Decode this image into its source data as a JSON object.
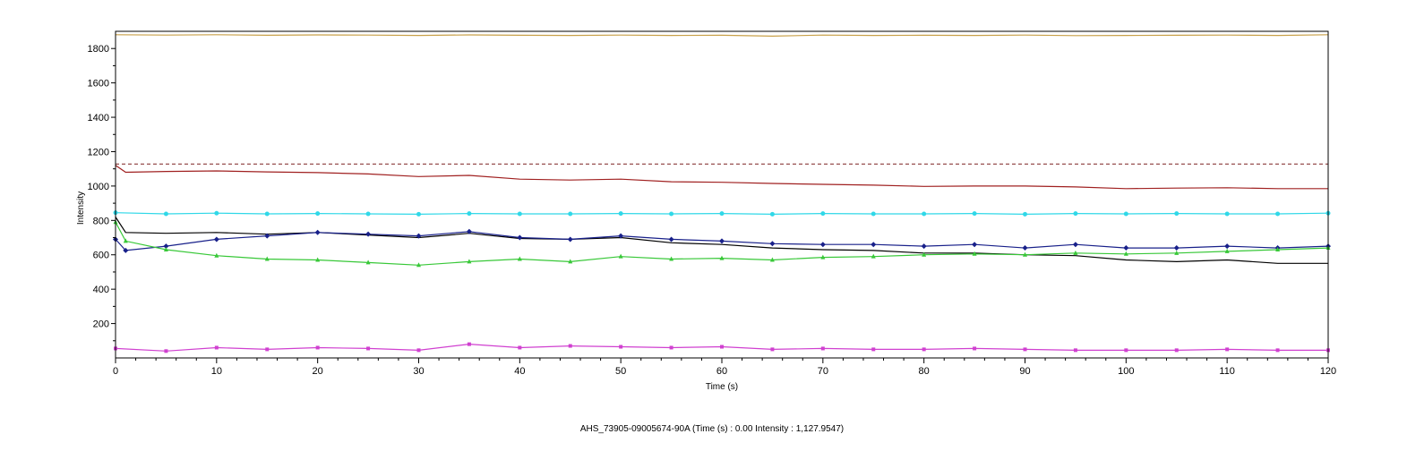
{
  "status_text": "AHS_73905-09005674-90A (Time (s) : 0.00  Intensity : 1,127.9547)",
  "chart_data": {
    "type": "line",
    "xlabel": "Time (s)",
    "ylabel": "Intensity",
    "xlim": [
      0,
      120
    ],
    "ylim": [
      0,
      1900
    ],
    "xticks": [
      0,
      10,
      20,
      30,
      40,
      50,
      60,
      70,
      80,
      90,
      100,
      110,
      120
    ],
    "yticks": [
      200,
      400,
      600,
      800,
      1000,
      1200,
      1400,
      1600,
      1800
    ],
    "grid": false,
    "legend": "none",
    "cursor": {
      "x": 0,
      "y": 1127.9547
    },
    "reference_lines": [
      {
        "y": 1127.95,
        "color": "#8b3a3a",
        "style": "dashed"
      }
    ],
    "series": [
      {
        "color": "#c8a048",
        "marker": "none",
        "x": [
          0,
          5,
          10,
          15,
          20,
          25,
          30,
          35,
          40,
          45,
          50,
          55,
          60,
          65,
          70,
          75,
          80,
          85,
          90,
          95,
          100,
          105,
          110,
          115,
          120
        ],
        "y": [
          1880,
          1878,
          1880,
          1877,
          1879,
          1878,
          1876,
          1879,
          1877,
          1876,
          1878,
          1876,
          1877,
          1872,
          1878,
          1876,
          1877,
          1876,
          1878,
          1875,
          1876,
          1877,
          1878,
          1876,
          1880
        ]
      },
      {
        "color": "#a02020",
        "marker": "none",
        "x": [
          0,
          1,
          5,
          10,
          15,
          20,
          25,
          30,
          35,
          40,
          45,
          50,
          55,
          60,
          65,
          70,
          75,
          80,
          85,
          90,
          95,
          100,
          105,
          110,
          115,
          120
        ],
        "y": [
          1120,
          1080,
          1085,
          1088,
          1082,
          1078,
          1070,
          1055,
          1062,
          1040,
          1035,
          1040,
          1025,
          1022,
          1015,
          1010,
          1005,
          998,
          1000,
          1000,
          995,
          985,
          988,
          990,
          985,
          985
        ]
      },
      {
        "color": "#30d8e8",
        "marker": "star",
        "x": [
          0,
          5,
          10,
          15,
          20,
          25,
          30,
          35,
          40,
          45,
          50,
          55,
          60,
          65,
          70,
          75,
          80,
          85,
          90,
          95,
          100,
          105,
          110,
          115,
          120
        ],
        "y": [
          845,
          838,
          842,
          838,
          840,
          838,
          836,
          840,
          838,
          838,
          840,
          838,
          840,
          836,
          840,
          838,
          838,
          840,
          836,
          840,
          838,
          840,
          838,
          838,
          842
        ]
      },
      {
        "color": "#000000",
        "marker": "none",
        "x": [
          0,
          1,
          5,
          10,
          15,
          20,
          25,
          30,
          35,
          40,
          45,
          50,
          55,
          60,
          65,
          70,
          75,
          80,
          85,
          90,
          95,
          100,
          105,
          110,
          115,
          120
        ],
        "y": [
          820,
          730,
          725,
          730,
          720,
          730,
          715,
          700,
          725,
          695,
          690,
          700,
          670,
          660,
          640,
          630,
          625,
          610,
          610,
          600,
          595,
          570,
          560,
          570,
          550,
          550
        ]
      },
      {
        "color": "#18208a",
        "marker": "diamond",
        "x": [
          0,
          1,
          5,
          10,
          15,
          20,
          25,
          30,
          35,
          40,
          45,
          50,
          55,
          60,
          65,
          70,
          75,
          80,
          85,
          90,
          95,
          100,
          105,
          110,
          115,
          120
        ],
        "y": [
          690,
          625,
          650,
          690,
          710,
          730,
          720,
          710,
          735,
          700,
          690,
          710,
          690,
          680,
          665,
          660,
          660,
          650,
          660,
          640,
          660,
          640,
          640,
          650,
          640,
          650
        ]
      },
      {
        "color": "#38c838",
        "marker": "triangle",
        "x": [
          0,
          1,
          5,
          10,
          15,
          20,
          25,
          30,
          35,
          40,
          45,
          50,
          55,
          60,
          65,
          70,
          75,
          80,
          85,
          90,
          95,
          100,
          105,
          110,
          115,
          120
        ],
        "y": [
          790,
          680,
          630,
          595,
          575,
          570,
          555,
          540,
          560,
          575,
          560,
          590,
          575,
          580,
          570,
          585,
          590,
          600,
          605,
          600,
          610,
          605,
          610,
          620,
          630,
          640
        ]
      },
      {
        "color": "#d040d0",
        "marker": "square",
        "x": [
          0,
          5,
          10,
          15,
          20,
          25,
          30,
          35,
          40,
          45,
          50,
          55,
          60,
          65,
          70,
          75,
          80,
          85,
          90,
          95,
          100,
          105,
          110,
          115,
          120
        ],
        "y": [
          55,
          40,
          60,
          50,
          60,
          55,
          45,
          80,
          60,
          70,
          65,
          60,
          65,
          50,
          55,
          50,
          50,
          55,
          50,
          45,
          45,
          45,
          50,
          45,
          45
        ]
      }
    ]
  }
}
